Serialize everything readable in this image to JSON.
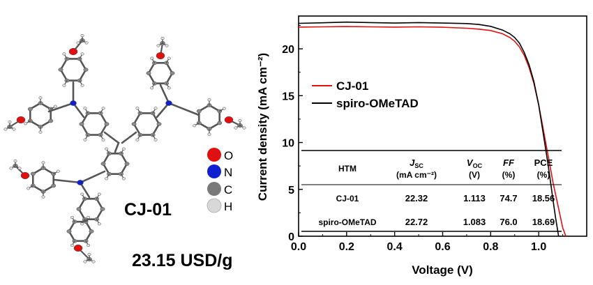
{
  "molecule": {
    "name": "CJ-01",
    "cost": "23.15 USD/g",
    "atom_legend": [
      {
        "symbol": "O",
        "color": "#e01010"
      },
      {
        "symbol": "N",
        "color": "#1020d0"
      },
      {
        "symbol": "C",
        "color": "#7a7a7a"
      },
      {
        "symbol": "H",
        "color": "#d8d8d8"
      }
    ]
  },
  "chart_data": {
    "type": "line",
    "xlabel": "Voltage (V)",
    "ylabel": "Current density (mA cm⁻²)",
    "xlim": [
      0.0,
      1.2
    ],
    "ylim": [
      0,
      23.5
    ],
    "x_ticks": [
      "0.0",
      "0.2",
      "0.4",
      "0.6",
      "0.8",
      "1.0"
    ],
    "y_ticks": [
      "0",
      "5",
      "10",
      "15",
      "20"
    ],
    "legend_position": "center-left",
    "series": [
      {
        "name": "CJ-01",
        "color": "#e01010",
        "x": [
          0.0,
          0.1,
          0.2,
          0.3,
          0.4,
          0.5,
          0.6,
          0.7,
          0.75,
          0.8,
          0.85,
          0.88,
          0.9,
          0.92,
          0.94,
          0.96,
          0.98,
          1.0,
          1.02,
          1.04,
          1.06,
          1.08,
          1.1,
          1.113
        ],
        "y": [
          22.32,
          22.35,
          22.38,
          22.35,
          22.32,
          22.35,
          22.3,
          22.2,
          22.1,
          21.95,
          21.6,
          21.2,
          20.8,
          20.2,
          19.3,
          18.0,
          16.3,
          14.0,
          11.3,
          8.5,
          5.7,
          3.3,
          0.9,
          0.0
        ]
      },
      {
        "name": "spiro-OMeTAD",
        "color": "#000000",
        "x": [
          0.0,
          0.1,
          0.2,
          0.3,
          0.4,
          0.5,
          0.6,
          0.7,
          0.75,
          0.8,
          0.85,
          0.88,
          0.9,
          0.92,
          0.94,
          0.96,
          0.98,
          1.0,
          1.02,
          1.04,
          1.06,
          1.07,
          1.083
        ],
        "y": [
          22.72,
          22.78,
          22.85,
          22.8,
          22.75,
          22.8,
          22.75,
          22.7,
          22.6,
          22.4,
          22.0,
          21.6,
          21.2,
          20.6,
          19.6,
          18.3,
          16.5,
          14.0,
          10.8,
          7.5,
          3.8,
          2.0,
          0.0
        ]
      }
    ],
    "table": {
      "headers": [
        {
          "main": "HTM",
          "sub": "",
          "units": ""
        },
        {
          "main": "J",
          "sub": "SC",
          "units": "(mA cm⁻²)"
        },
        {
          "main": "V",
          "sub": "OC",
          "units": "(V)"
        },
        {
          "main": "FF",
          "sub": "",
          "units": "(%)"
        },
        {
          "main": "PCE",
          "sub": "",
          "units": "(%)"
        }
      ],
      "rows": [
        [
          "CJ-01",
          "22.32",
          "1.113",
          "74.7",
          "18.56"
        ],
        [
          "spiro-OMeTAD",
          "22.72",
          "1.083",
          "76.0",
          "18.69"
        ]
      ]
    }
  }
}
